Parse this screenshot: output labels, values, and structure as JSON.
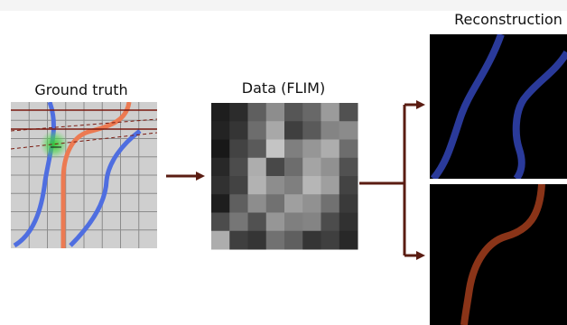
{
  "labels": {
    "ground_truth": "Ground truth",
    "data": "Data (FLIM)",
    "reconstruction": "Reconstruction"
  },
  "colors": {
    "blue_fiber": "#4f6ee0",
    "orange_fiber": "#ec7a52",
    "recon_blue": "#2a3a9a",
    "recon_orange": "#8a3418",
    "arrow": "#5a1c12",
    "grid_bg": "#cfcfcf",
    "grid_line": "#8a8a8a",
    "focus_spot": "#33cc33",
    "scan_line": "#7a1a10"
  },
  "flim_pixels": [
    [
      0.08,
      0.14,
      0.36,
      0.56,
      0.32,
      0.4,
      0.62,
      0.3
    ],
    [
      0.1,
      0.18,
      0.42,
      0.68,
      0.22,
      0.34,
      0.52,
      0.55
    ],
    [
      0.05,
      0.24,
      0.34,
      0.8,
      0.5,
      0.6,
      0.7,
      0.42
    ],
    [
      0.12,
      0.28,
      0.7,
      0.26,
      0.42,
      0.66,
      0.58,
      0.3
    ],
    [
      0.16,
      0.24,
      0.72,
      0.56,
      0.5,
      0.74,
      0.64,
      0.24
    ],
    [
      0.08,
      0.36,
      0.56,
      0.44,
      0.64,
      0.58,
      0.44,
      0.2
    ],
    [
      0.28,
      0.46,
      0.3,
      0.6,
      0.5,
      0.52,
      0.28,
      0.16
    ],
    [
      0.7,
      0.22,
      0.18,
      0.44,
      0.36,
      0.18,
      0.22,
      0.12
    ]
  ]
}
